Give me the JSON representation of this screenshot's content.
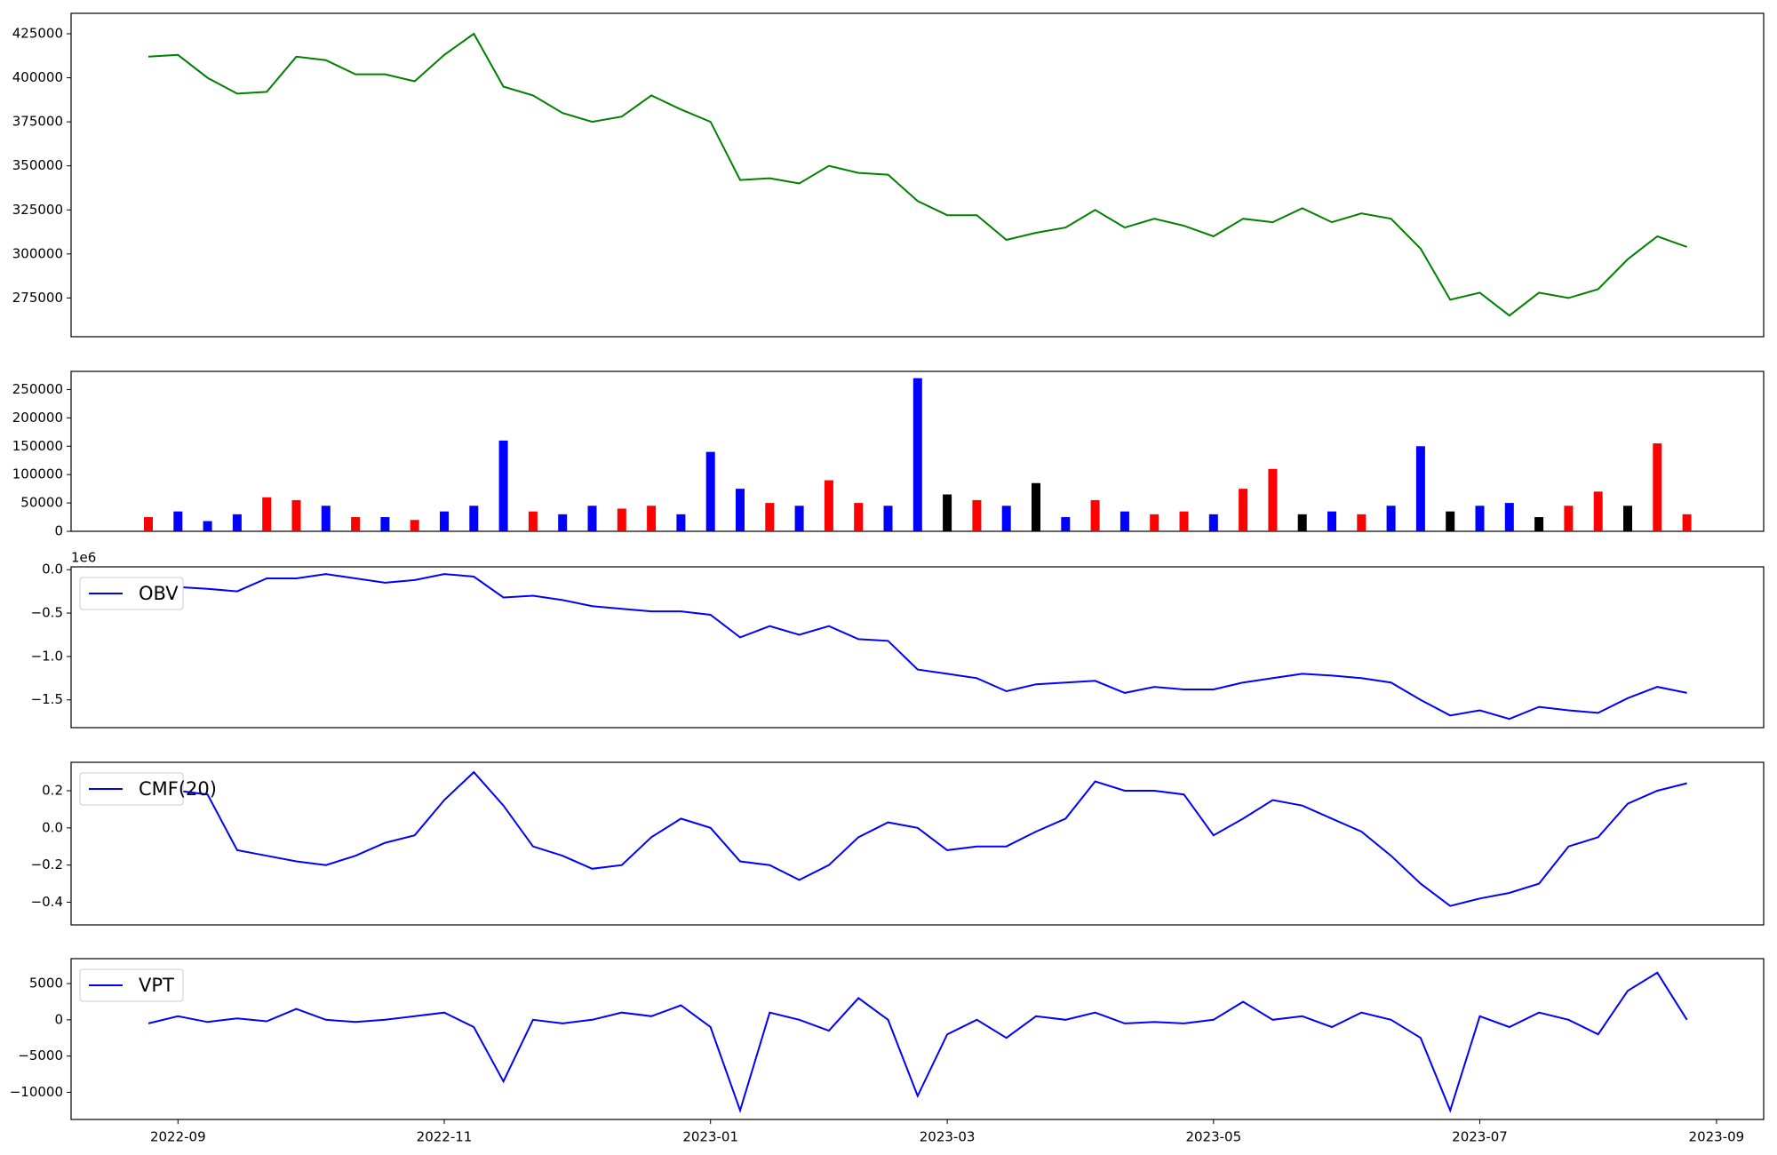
{
  "chart_data": [
    {
      "type": "line",
      "color": "#008000",
      "values": [
        412000,
        413000,
        400000,
        391000,
        392000,
        412000,
        410000,
        402000,
        402000,
        398000,
        413000,
        425000,
        395000,
        390000,
        380000,
        375000,
        378000,
        390000,
        382000,
        375000,
        342000,
        343000,
        340000,
        350000,
        346000,
        345000,
        330000,
        322000,
        322000,
        308000,
        312000,
        315000,
        325000,
        315000,
        320000,
        316000,
        310000,
        320000,
        318000,
        326000,
        318000,
        323000,
        320000,
        303000,
        274000,
        278000,
        265000,
        278000,
        275000,
        280000,
        297000,
        310000,
        304000,
        null
      ],
      "ylim": [
        253000,
        436600
      ],
      "yticks": [
        275000,
        300000,
        325000,
        350000,
        375000,
        400000,
        425000
      ],
      "grid": false
    },
    {
      "type": "bar",
      "values": [
        25000,
        35000,
        18000,
        30000,
        60000,
        55000,
        45000,
        25000,
        25000,
        20000,
        35000,
        45000,
        160000,
        35000,
        30000,
        45000,
        40000,
        45000,
        30000,
        140000,
        75000,
        50000,
        45000,
        90000,
        50000,
        45000,
        270000,
        65000,
        55000,
        45000,
        85000,
        25000,
        55000,
        35000,
        30000,
        35000,
        30000,
        75000,
        110000,
        30000,
        35000,
        30000,
        45000,
        150000,
        35000,
        45000,
        50000,
        25000,
        45000,
        70000,
        45000,
        155000,
        30000,
        null
      ],
      "colors": [
        "#ff0000",
        "#0000ff",
        "#0000ff",
        "#0000ff",
        "#ff0000",
        "#ff0000",
        "#0000ff",
        "#ff0000",
        "#0000ff",
        "#ff0000",
        "#0000ff",
        "#0000ff",
        "#0000ff",
        "#ff0000",
        "#0000ff",
        "#0000ff",
        "#ff0000",
        "#ff0000",
        "#0000ff",
        "#0000ff",
        "#0000ff",
        "#ff0000",
        "#0000ff",
        "#ff0000",
        "#ff0000",
        "#0000ff",
        "#0000ff",
        "#000000",
        "#ff0000",
        "#0000ff",
        "#000000",
        "#0000ff",
        "#ff0000",
        "#0000ff",
        "#ff0000",
        "#ff0000",
        "#0000ff",
        "#ff0000",
        "#ff0000",
        "#000000",
        "#0000ff",
        "#ff0000",
        "#0000ff",
        "#0000ff",
        "#000000",
        "#0000ff",
        "#0000ff",
        "#000000",
        "#ff0000",
        "#ff0000",
        "#000000",
        "#ff0000",
        "#ff0000",
        "#ff0000"
      ],
      "ylim": [
        0,
        282000
      ],
      "yticks": [
        0,
        50000,
        100000,
        150000,
        200000,
        250000
      ],
      "grid": false
    },
    {
      "type": "line",
      "offset_label": "1e6",
      "legend": "upper left",
      "series": [
        {
          "name": "OBV",
          "color": "#0000ff",
          "values": [
            -0.15,
            -0.2,
            -0.22,
            -0.25,
            -0.1,
            -0.1,
            -0.05,
            -0.1,
            -0.15,
            -0.12,
            -0.05,
            -0.08,
            -0.32,
            -0.3,
            -0.35,
            -0.42,
            -0.45,
            -0.48,
            -0.48,
            -0.52,
            -0.78,
            -0.65,
            -0.75,
            -0.65,
            -0.8,
            -0.82,
            -1.15,
            -1.2,
            -1.25,
            -1.4,
            -1.32,
            -1.3,
            -1.28,
            -1.42,
            -1.35,
            -1.38,
            -1.38,
            -1.3,
            -1.25,
            -1.2,
            -1.22,
            -1.25,
            -1.3,
            -1.5,
            -1.68,
            -1.62,
            -1.72,
            -1.58,
            -1.62,
            -1.65,
            -1.48,
            -1.35,
            -1.42,
            null
          ]
        }
      ],
      "ylim": [
        -1.82,
        0.033
      ],
      "yticks": [
        {
          "value": -1.5,
          "label": "−1.5"
        },
        {
          "value": -1.0,
          "label": "−1.0"
        },
        {
          "value": -0.5,
          "label": "−0.5"
        },
        {
          "value": 0,
          "label": "0.0"
        }
      ],
      "grid": false
    },
    {
      "type": "line",
      "legend": "upper left",
      "series": [
        {
          "name": "CMF(20)",
          "color": "#0000ff",
          "values": [
            0.17,
            0.2,
            0.18,
            -0.12,
            -0.15,
            -0.18,
            -0.2,
            -0.15,
            -0.08,
            -0.04,
            0.15,
            0.3,
            0.12,
            -0.1,
            -0.15,
            -0.22,
            -0.2,
            -0.05,
            0.05,
            0.0,
            -0.18,
            -0.2,
            -0.28,
            -0.2,
            -0.05,
            0.03,
            0.0,
            -0.12,
            -0.1,
            -0.1,
            -0.02,
            0.05,
            0.25,
            0.2,
            0.2,
            0.18,
            -0.04,
            0.05,
            0.15,
            0.12,
            0.05,
            -0.02,
            -0.15,
            -0.3,
            -0.42,
            -0.38,
            -0.35,
            -0.3,
            -0.1,
            -0.05,
            0.13,
            0.2,
            0.24,
            null
          ]
        }
      ],
      "ylim": [
        -0.522,
        0.353
      ],
      "yticks": [
        {
          "value": -0.4,
          "label": "−0.4"
        },
        {
          "value": -0.2,
          "label": "−0.2"
        },
        {
          "value": 0,
          "label": "0.0"
        },
        0.2
      ],
      "grid": false
    },
    {
      "type": "line",
      "legend": "upper left",
      "categories": [
        null,
        "2022-09",
        null,
        null,
        null,
        null,
        null,
        null,
        null,
        null,
        "2022-11",
        null,
        null,
        null,
        null,
        null,
        null,
        null,
        null,
        "2023-01",
        null,
        null,
        null,
        null,
        null,
        null,
        null,
        "2023-03",
        null,
        null,
        null,
        null,
        null,
        null,
        null,
        null,
        "2023-05",
        null,
        null,
        null,
        null,
        null,
        null,
        null,
        null,
        "2023-07",
        null,
        null,
        null,
        null,
        null,
        null,
        null,
        "2023-09"
      ],
      "series": [
        {
          "name": "VPT",
          "color": "#0000ff",
          "values": [
            -500,
            500,
            -300,
            200,
            -200,
            1500,
            0,
            -300,
            0,
            500,
            1000,
            -1000,
            -8500,
            0,
            -500,
            0,
            1000,
            500,
            2000,
            -1000,
            -12500,
            1000,
            0,
            -1500,
            3000,
            0,
            -10500,
            -2000,
            0,
            -2500,
            500,
            0,
            1000,
            -500,
            -300,
            -500,
            0,
            2500,
            0,
            500,
            -1000,
            1000,
            0,
            -2500,
            -12500,
            500,
            -1000,
            1000,
            0,
            -2000,
            4000,
            6500,
            0,
            null
          ]
        }
      ],
      "ylim": [
        -13750,
        8440
      ],
      "yticks": [
        {
          "value": -10000,
          "label": "−10000"
        },
        {
          "value": -5000,
          "label": "−5000"
        },
        0,
        5000
      ],
      "grid": false
    }
  ]
}
